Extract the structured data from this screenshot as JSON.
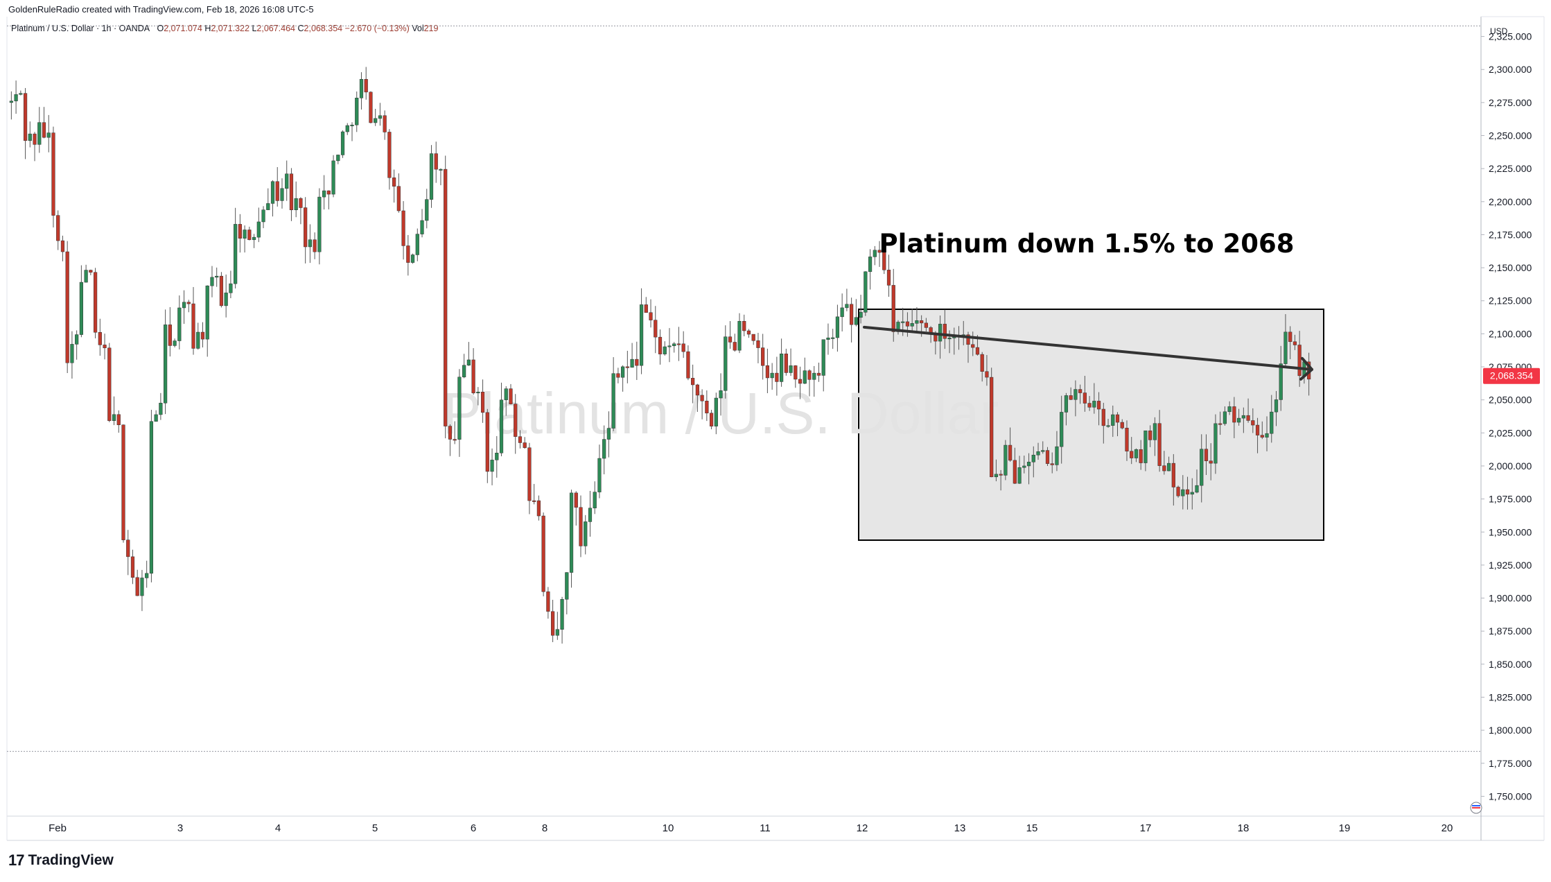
{
  "header": {
    "caption": "GoldenRuleRadio created with TradingView.com, Feb 18, 2026 16:08 UTC-5",
    "symbol": "Platinum / U.S. Dollar · 1h · OANDA",
    "open_label": "O",
    "open": "2,071.074",
    "high_label": "H",
    "high": "2,071.322",
    "low_label": "L",
    "low": "2,067.464",
    "close_label": "C",
    "close": "2,068.354",
    "change": "−2.670 (−0.13%)",
    "vol_label": "Vol",
    "vol": "219"
  },
  "watermark": "Platinum / U.S. Dollar",
  "annotation": "Platinum down 1.5% to 2068",
  "currency": "USD",
  "last_price_label": "2,068.354",
  "footer": {
    "brand": "TradingView",
    "logo_mark": "17"
  },
  "colors": {
    "up": "#089981",
    "down": "#f23645",
    "up_candle": "#2e8b57",
    "down_candle": "#c0392b",
    "accent": "#f23645",
    "box_fill": "#e6e6e6"
  },
  "chart_data": {
    "type": "candlestick",
    "title": "Platinum / U.S. Dollar",
    "interval": "1h",
    "y_axis": {
      "ticks": [
        1750,
        1775,
        1800,
        1825,
        1850,
        1875,
        1900,
        1925,
        1950,
        1975,
        2000,
        2025,
        2050,
        2075,
        2100,
        2125,
        2150,
        2175,
        2200,
        2225,
        2250,
        2275,
        2300,
        2325
      ],
      "tick_labels": [
        "1,750.000",
        "1,775.000",
        "1,800.000",
        "1,825.000",
        "1,850.000",
        "1,875.000",
        "1,900.000",
        "1,925.000",
        "1,950.000",
        "1,975.000",
        "2,000.000",
        "2,025.000",
        "2,050.000",
        "2,075.000",
        "2,100.000",
        "2,125.000",
        "2,150.000",
        "2,175.000",
        "2,200.000",
        "2,225.000",
        "2,250.000",
        "2,275.000",
        "2,300.000",
        "2,325.000"
      ],
      "range": [
        1735,
        2340
      ]
    },
    "x_axis": {
      "labels": [
        "Feb",
        "3",
        "4",
        "5",
        "6",
        "8",
        "10",
        "11",
        "12",
        "13",
        "15",
        "17",
        "18",
        "19",
        "20"
      ]
    },
    "horizontal_lines": [
      2333,
      1784
    ],
    "price_path": [
      [
        2275,
        2285
      ],
      [
        2250,
        2245
      ],
      [
        2255,
        2245
      ],
      [
        2195,
        2140
      ],
      [
        2085,
        2100
      ],
      [
        2140,
        2150
      ],
      [
        2095,
        2080
      ],
      [
        2040,
        2020
      ],
      [
        1950,
        1900
      ],
      [
        1900,
        1935
      ],
      [
        2030,
        2060
      ],
      [
        2100,
        2090
      ],
      [
        2115,
        2130
      ],
      [
        2095,
        2105
      ],
      [
        2130,
        2150
      ],
      [
        2125,
        2150
      ],
      [
        2180,
        2175
      ],
      [
        2165,
        2200
      ],
      [
        2200,
        2215
      ],
      [
        2205,
        2225
      ],
      [
        2195,
        2205
      ],
      [
        2165,
        2170
      ],
      [
        2210,
        2200
      ],
      [
        2230,
        2260
      ],
      [
        2255,
        2285
      ],
      [
        2290,
        2255
      ],
      [
        2265,
        2255
      ],
      [
        2215,
        2190
      ],
      [
        2160,
        2150
      ],
      [
        2175,
        2220
      ],
      [
        2240,
        2210
      ],
      [
        2025,
        2015
      ],
      [
        2065,
        2085
      ],
      [
        2060,
        2030
      ],
      [
        2000,
        2010
      ],
      [
        2055,
        2045
      ],
      [
        2025,
        2010
      ],
      [
        1975,
        1960
      ],
      [
        1900,
        1850
      ],
      [
        1875,
        1940
      ],
      [
        1985,
        1920
      ],
      [
        1960,
        2000
      ],
      [
        2010,
        2035
      ],
      [
        2070,
        2080
      ],
      [
        2075,
        2080
      ],
      [
        2125,
        2100
      ],
      [
        2095,
        2080
      ],
      [
        2085,
        2100
      ],
      [
        2080,
        2050
      ],
      [
        2055,
        2025
      ],
      [
        2030,
        2075
      ],
      [
        2095,
        2090
      ],
      [
        2110,
        2100
      ],
      [
        2090,
        2070
      ],
      [
        2070,
        2060
      ],
      [
        2080,
        2065
      ],
      [
        2065,
        2070
      ],
      [
        2070,
        2060
      ],
      [
        2090,
        2100
      ],
      [
        2110,
        2120
      ],
      [
        2105,
        2125
      ],
      [
        2145,
        2170
      ],
      [
        2165,
        2130
      ],
      [
        2100,
        2110
      ],
      [
        2105,
        2110
      ],
      [
        2110,
        2095
      ],
      [
        2100,
        2105
      ],
      [
        2100,
        2100
      ],
      [
        2098,
        2093
      ],
      [
        2080,
        2060
      ],
      [
        1995,
        1985
      ],
      [
        2010,
        1985
      ],
      [
        2005,
        2010
      ],
      [
        2005,
        2010
      ],
      [
        1995,
        2030
      ],
      [
        2040,
        2060
      ],
      [
        2055,
        2045
      ],
      [
        2050,
        2030
      ],
      [
        2035,
        2035
      ],
      [
        2030,
        2010
      ],
      [
        2005,
        2010
      ],
      [
        2025,
        2030
      ],
      [
        2000,
        2005
      ],
      [
        1990,
        1970
      ],
      [
        1980,
        1995
      ],
      [
        2010,
        2000
      ],
      [
        2030,
        2040
      ],
      [
        2040,
        2030
      ],
      [
        2045,
        2030
      ],
      [
        2030,
        2025
      ],
      [
        2040,
        2090
      ],
      [
        2095,
        2080
      ],
      [
        2075,
        2068
      ]
    ],
    "trendline": {
      "from": [
        12.0,
        2105
      ],
      "to": [
        18.55,
        2073
      ]
    },
    "last_price": 2068.354
  }
}
